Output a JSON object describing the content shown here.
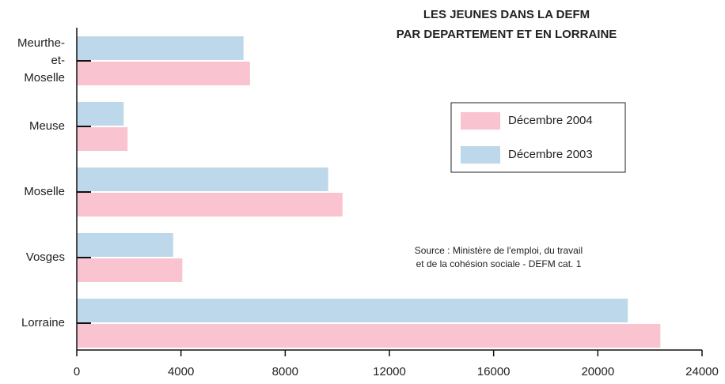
{
  "chart_data": {
    "type": "barh",
    "title": [
      "LES JEUNES DANS LA DEFM",
      "PAR DEPARTEMENT ET EN LORRAINE"
    ],
    "annotation": [
      "Source : Ministère de l'emploi, du travail",
      "et de la cohésion sociale - DEFM cat. 1"
    ],
    "categories": [
      "Meurthe-et-Moselle",
      "Meuse",
      "Moselle",
      "Vosges",
      "Lorraine"
    ],
    "series": [
      {
        "name": "Décembre 2004",
        "color": "#f9c4d0",
        "values": [
          6650,
          1950,
          10200,
          4050,
          22400
        ]
      },
      {
        "name": "Décembre 2003",
        "color": "#bcd8ea",
        "values": [
          6400,
          1800,
          9650,
          3700,
          21150
        ]
      }
    ],
    "xlim": [
      0,
      24000
    ],
    "xticks": [
      0,
      4000,
      8000,
      12000,
      16000,
      20000,
      24000
    ],
    "legend": "right"
  }
}
